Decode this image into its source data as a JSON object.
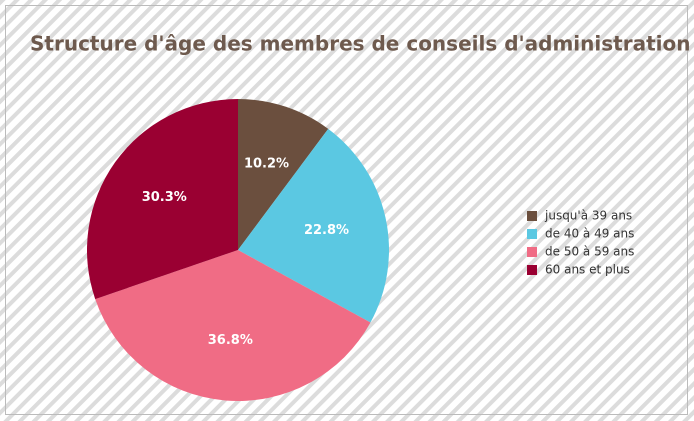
{
  "chart_data": {
    "type": "pie",
    "title": "Structure d'âge des membres de conseils d'administration",
    "categories": [
      "jusqu'à 39 ans",
      "de 40 à 49 ans",
      "de 50 à 59 ans",
      "60 ans et plus"
    ],
    "values": [
      10.2,
      22.8,
      36.8,
      30.3
    ],
    "value_labels": [
      "10.2%",
      "22.8%",
      "36.8%",
      "30.3%"
    ],
    "colors": [
      "#6b4f3e",
      "#5bc8e2",
      "#f06c85",
      "#9a0032"
    ],
    "legend": "right"
  }
}
